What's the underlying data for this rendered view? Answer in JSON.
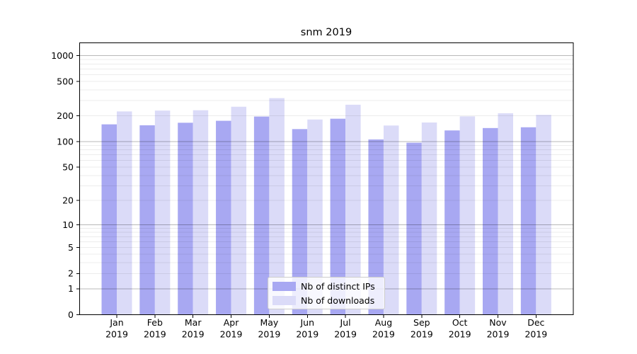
{
  "chart_data": {
    "type": "bar",
    "title": "snm 2019",
    "categories": [
      "Jan",
      "Feb",
      "Mar",
      "Apr",
      "May",
      "Jun",
      "Jul",
      "Aug",
      "Sep",
      "Oct",
      "Nov",
      "Dec"
    ],
    "year": "2019",
    "series": [
      {
        "name": "Nb of distinct IPs",
        "color": "#a8a8f2",
        "values": [
          159,
          155,
          166,
          175,
          196,
          140,
          185,
          106,
          97,
          135,
          144,
          147
        ]
      },
      {
        "name": "Nb of downloads",
        "color": "#dbdbf8",
        "values": [
          225,
          230,
          232,
          255,
          321,
          181,
          269,
          154,
          167,
          197,
          214,
          205
        ]
      }
    ],
    "xlabel": "",
    "ylabel": "",
    "yscale": "log1p",
    "yticks": [
      0,
      1,
      2,
      5,
      10,
      20,
      50,
      100,
      200,
      500,
      1000
    ],
    "ylim": [
      0,
      1400
    ],
    "grid": true,
    "gridline_major_values": [
      1,
      10,
      100,
      1000
    ],
    "legend_position": "lower center",
    "colors": {
      "major_grid": "#b9b9b9",
      "minor_grid": "#ececec",
      "axis": "#000000",
      "background": "#ffffff"
    }
  }
}
